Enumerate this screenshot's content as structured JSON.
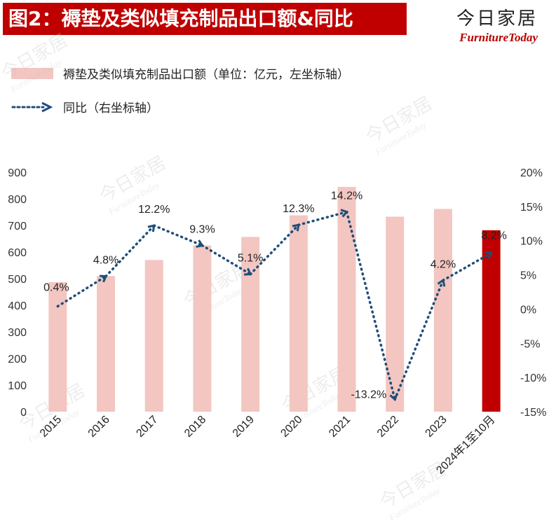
{
  "header": {
    "title": "图2：褥垫及类似填充制品出口额&同比",
    "brand_cn": "今日家居",
    "brand_en": "FurnitureToday"
  },
  "legend": {
    "bar_label": "褥垫及类似填充制品出口额（单位：亿元，左坐标轴）",
    "line_label": "同比（右坐标轴）"
  },
  "watermark": {
    "cn": "今日家居",
    "en": "FurnitureToday"
  },
  "colors": {
    "bar": "#f3c6c1",
    "bar_highlight": "#c00000",
    "line": "#1f4e79",
    "title_bg": "#c00000"
  },
  "chart_data": {
    "type": "bar",
    "categories": [
      "2015",
      "2016",
      "2017",
      "2018",
      "2019",
      "2020",
      "2021",
      "2022",
      "2023",
      "2024年1至10月"
    ],
    "series": [
      {
        "name": "褥垫及类似填充制品出口额（单位：亿元，左坐标轴）",
        "type": "bar",
        "axis": "left",
        "values": [
          487,
          510,
          570,
          625,
          657,
          738,
          845,
          733,
          762,
          682
        ]
      },
      {
        "name": "同比（右坐标轴）",
        "type": "line",
        "axis": "right",
        "style": "dotted",
        "marker": "arrow",
        "values": [
          0.4,
          4.8,
          12.2,
          9.3,
          5.1,
          12.3,
          14.2,
          -13.2,
          4.2,
          8.2
        ],
        "labels": [
          "0.4%",
          "4.8%",
          "12.2%",
          "9.3%",
          "5.1%",
          "12.3%",
          "14.2%",
          "-13.2%",
          "4.2%",
          "8.2%"
        ]
      }
    ],
    "highlight_index": 9,
    "y_left": {
      "ylim": [
        0,
        900
      ],
      "ticks": [
        "0",
        "100",
        "200",
        "300",
        "400",
        "500",
        "600",
        "700",
        "800",
        "900"
      ]
    },
    "y_right": {
      "ylim": [
        -15,
        20
      ],
      "ticks": [
        "-15%",
        "-10%",
        "-5%",
        "0%",
        "5%",
        "10%",
        "15%",
        "20%"
      ]
    },
    "grid": false,
    "legend_position": "top-left"
  }
}
